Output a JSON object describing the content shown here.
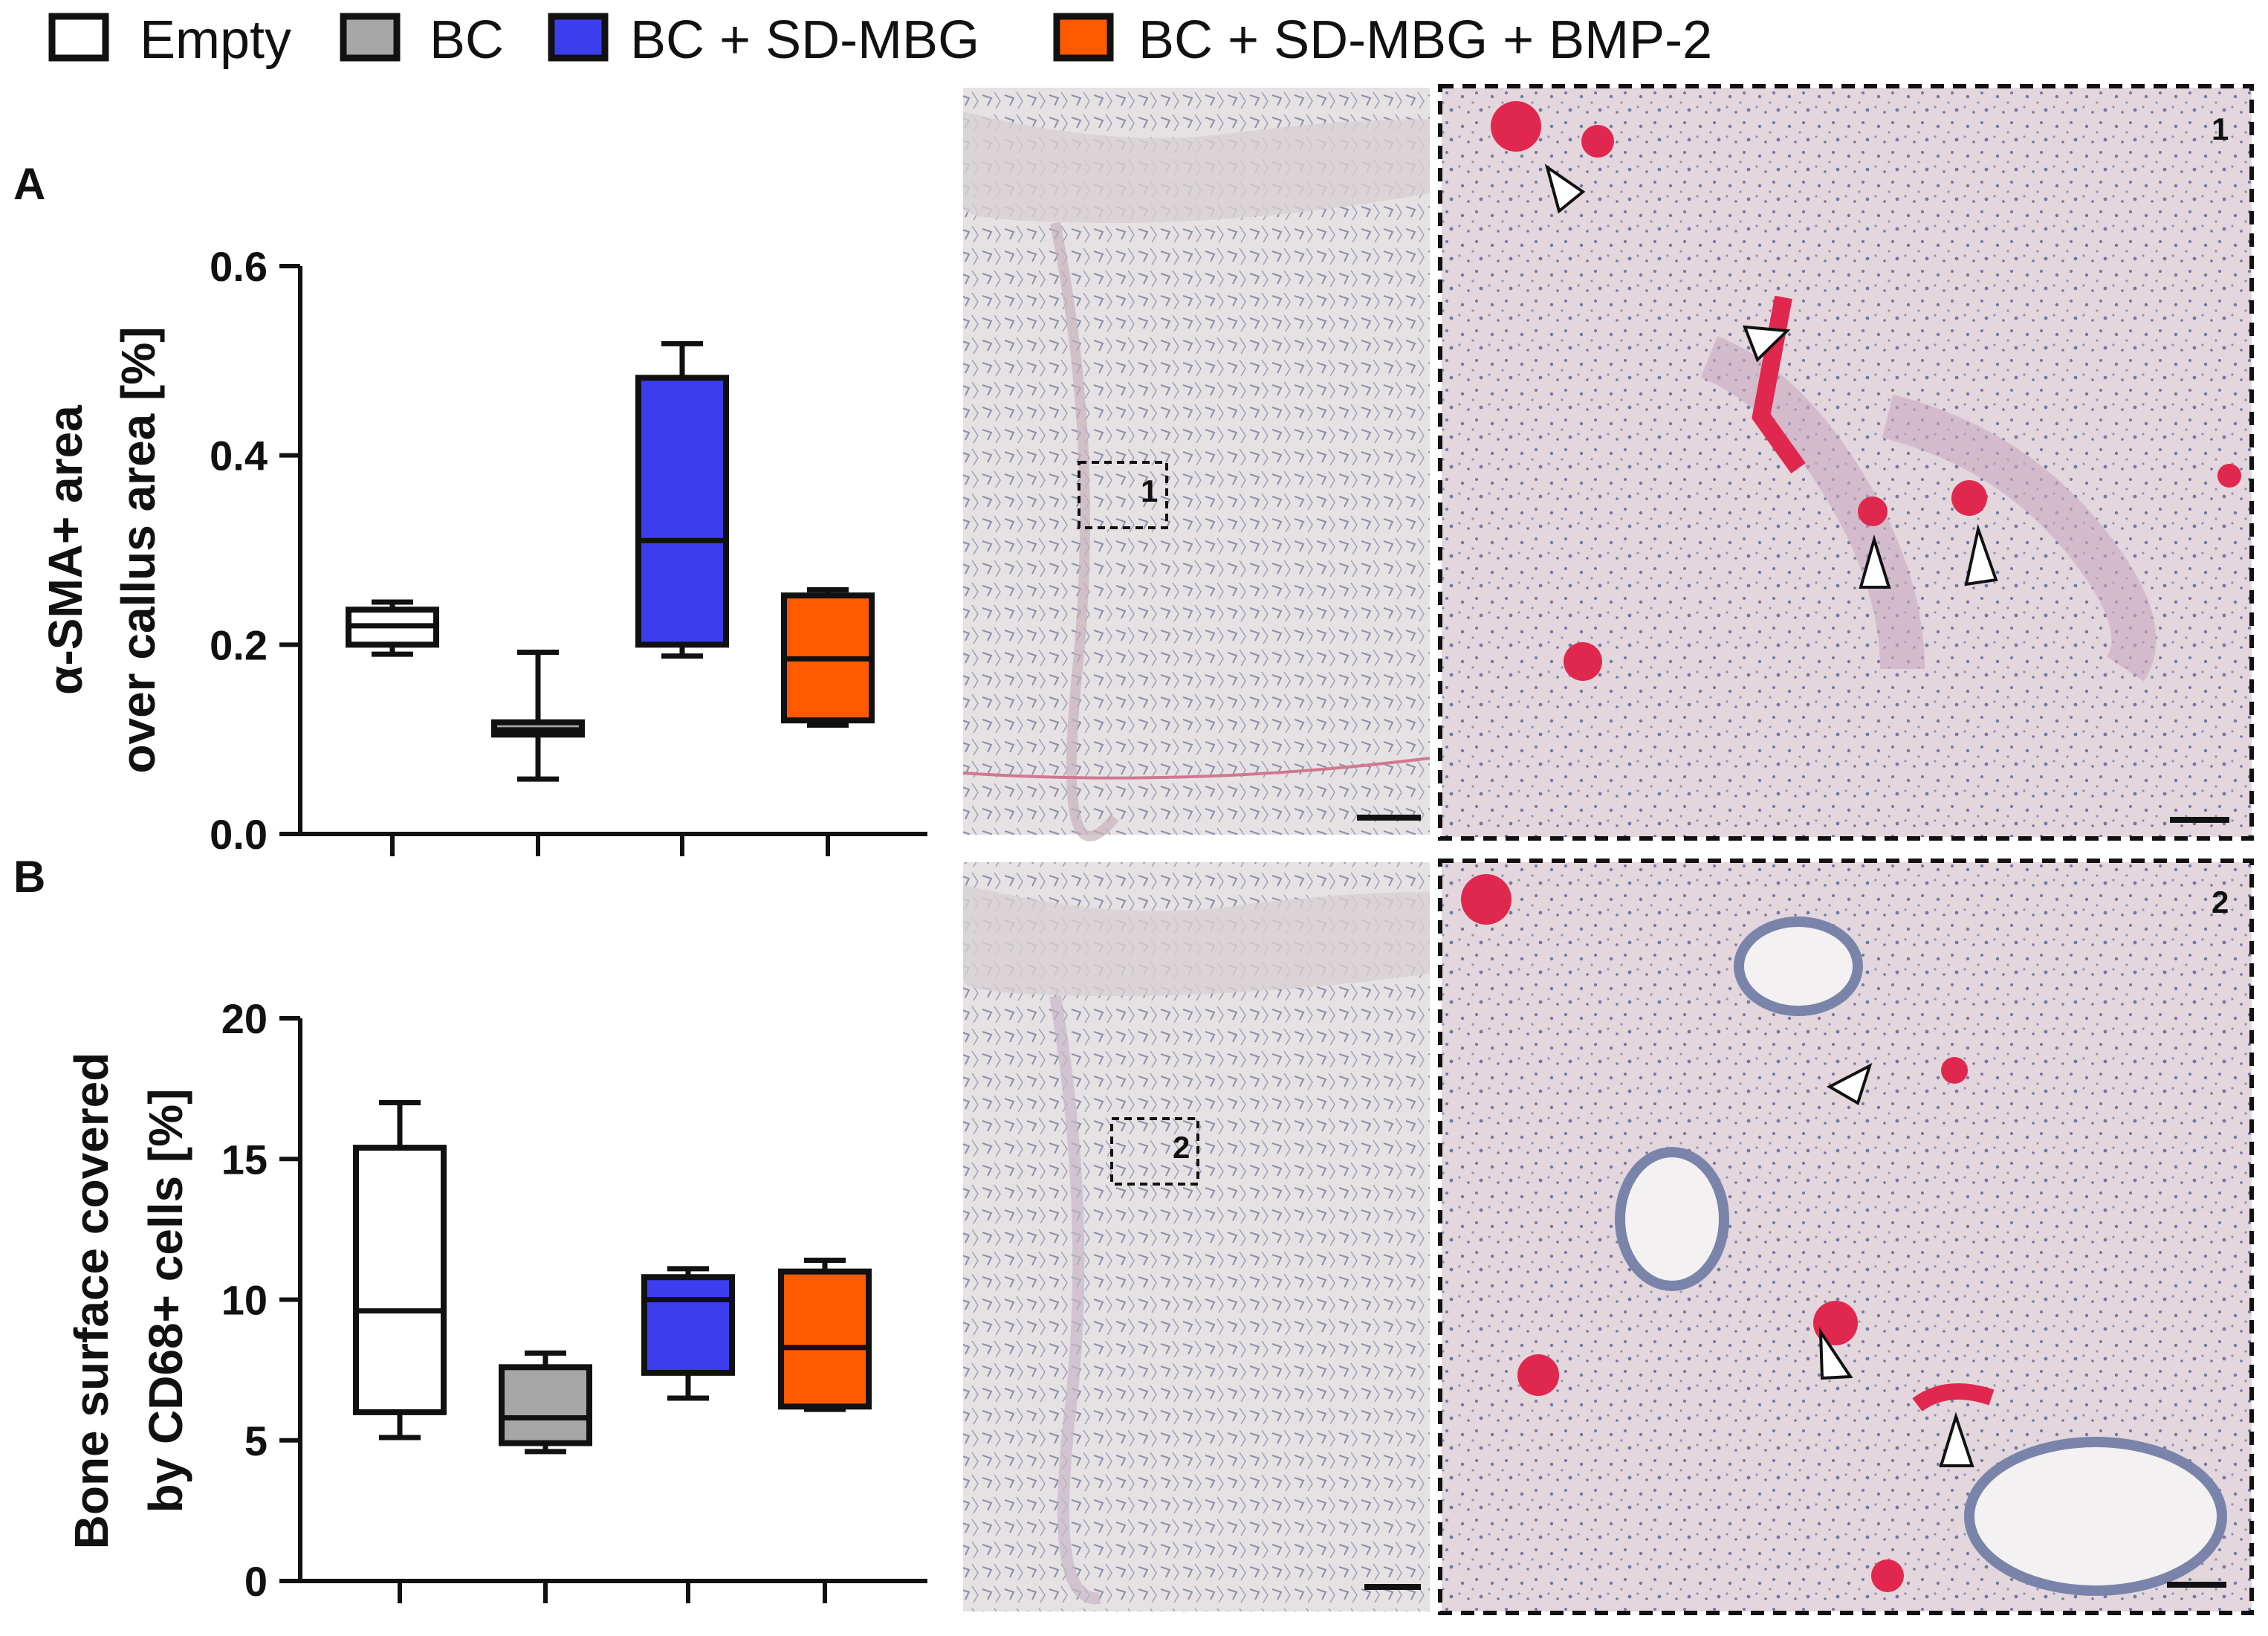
{
  "legend": {
    "items": [
      {
        "label": "Empty",
        "color": "#ffffff"
      },
      {
        "label": "BC",
        "color": "#a6a6a6"
      },
      {
        "label": "BC + SD-MBG",
        "color": "#3d3df0"
      },
      {
        "label": "BC + SD-MBG + BMP-2",
        "color": "#ff5a00"
      }
    ]
  },
  "panels": {
    "a_letter": "A",
    "b_letter": "B",
    "inset_1": "1",
    "inset_2": "2"
  },
  "chart_data": [
    {
      "type": "box",
      "panel": "A",
      "ylabel_line1": "α-SMA+ area",
      "ylabel_line2": "over callus area [%]",
      "ylim": [
        0,
        0.6
      ],
      "yticks": [
        0,
        0.2,
        0.4,
        0.6
      ],
      "ytick_labels": [
        "0.0",
        "0.2",
        "0.4",
        "0.6"
      ],
      "grid": false,
      "series": [
        {
          "name": "Empty",
          "min": 0.19,
          "q1": 0.2,
          "median": 0.22,
          "q3": 0.237,
          "max": 0.245
        },
        {
          "name": "BC",
          "min": 0.058,
          "q1": 0.105,
          "median": 0.11,
          "q3": 0.118,
          "max": 0.192
        },
        {
          "name": "BC + SD-MBG",
          "min": 0.188,
          "q1": 0.2,
          "median": 0.31,
          "q3": 0.482,
          "max": 0.518
        },
        {
          "name": "BC + SD-MBG + BMP-2",
          "min": 0.115,
          "q1": 0.12,
          "median": 0.185,
          "q3": 0.252,
          "max": 0.258
        }
      ]
    },
    {
      "type": "box",
      "panel": "B",
      "ylabel_line1": "Bone surface covered",
      "ylabel_line2": "by CD68+ cells [%]",
      "ylim": [
        0,
        20
      ],
      "yticks": [
        0,
        5,
        10,
        15,
        20
      ],
      "ytick_labels": [
        "0",
        "5",
        "10",
        "15",
        "20"
      ],
      "grid": false,
      "series": [
        {
          "name": "Empty",
          "min": 5.1,
          "q1": 6.0,
          "median": 9.6,
          "q3": 15.4,
          "max": 17.0
        },
        {
          "name": "BC",
          "min": 4.6,
          "q1": 4.9,
          "median": 5.8,
          "q3": 7.6,
          "max": 8.1
        },
        {
          "name": "BC + SD-MBG",
          "min": 6.5,
          "q1": 7.4,
          "median": 10.0,
          "q3": 10.8,
          "max": 11.1
        },
        {
          "name": "BC + SD-MBG + BMP-2",
          "min": 6.1,
          "q1": 6.2,
          "median": 8.3,
          "q3": 11.0,
          "max": 11.4
        }
      ]
    }
  ]
}
